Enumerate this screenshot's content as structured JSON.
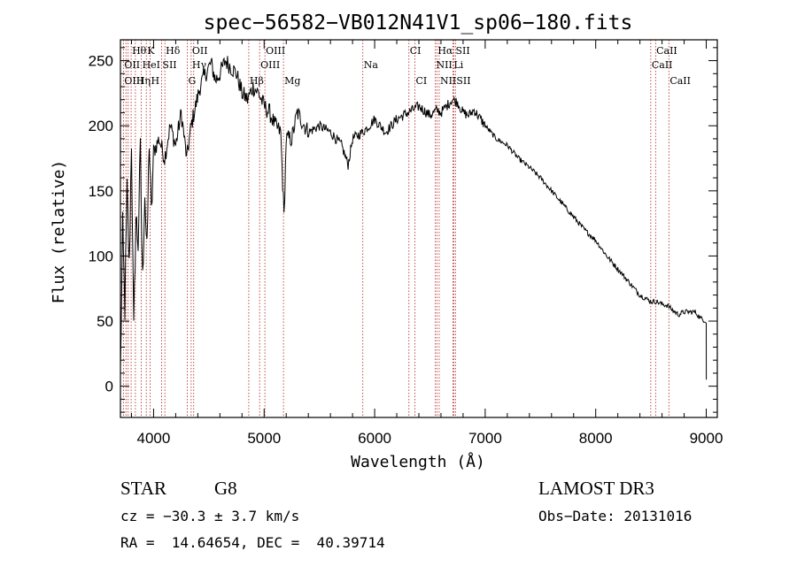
{
  "chart_data": {
    "type": "line",
    "title": "spec−56582−VB012N41V1_sp06−180.fits",
    "xlabel": "Wavelength (Å)",
    "ylabel": "Flux (relative)",
    "xlim": [
      3700,
      9100
    ],
    "ylim": [
      -24,
      266
    ],
    "x_ticks": [
      4000,
      5000,
      6000,
      7000,
      8000,
      9000
    ],
    "y_ticks": [
      0,
      50,
      100,
      150,
      200,
      250
    ],
    "grid": false,
    "series": [
      {
        "name": "spectrum",
        "x": [
          3700,
          3720,
          3740,
          3760,
          3780,
          3800,
          3820,
          3840,
          3860,
          3880,
          3900,
          3920,
          3940,
          3960,
          3980,
          4000,
          4050,
          4100,
          4150,
          4200,
          4250,
          4300,
          4340,
          4380,
          4420,
          4470,
          4520,
          4560,
          4600,
          4650,
          4700,
          4750,
          4800,
          4850,
          4900,
          4950,
          5000,
          5050,
          5100,
          5150,
          5180,
          5200,
          5250,
          5300,
          5400,
          5500,
          5600,
          5700,
          5760,
          5800,
          5890,
          5950,
          6000,
          6100,
          6200,
          6300,
          6400,
          6500,
          6563,
          6600,
          6650,
          6700,
          6750,
          6800,
          6850,
          6900,
          7000,
          7100,
          7200,
          7300,
          7400,
          7500,
          7600,
          7700,
          7800,
          7900,
          8000,
          8100,
          8200,
          8300,
          8400,
          8500,
          8550,
          8600,
          8650,
          8700,
          8750,
          8800,
          8850,
          8900,
          8950,
          9000,
          9001
        ],
        "values": [
          10,
          120,
          60,
          150,
          90,
          190,
          40,
          130,
          110,
          180,
          80,
          150,
          100,
          190,
          130,
          180,
          190,
          175,
          200,
          185,
          210,
          175,
          200,
          215,
          230,
          240,
          248,
          235,
          240,
          250,
          245,
          240,
          225,
          220,
          230,
          225,
          215,
          210,
          200,
          195,
          130,
          190,
          190,
          210,
          195,
          200,
          195,
          185,
          170,
          190,
          195,
          200,
          205,
          195,
          205,
          210,
          215,
          208,
          212,
          210,
          215,
          220,
          218,
          210,
          208,
          212,
          200,
          190,
          185,
          175,
          168,
          160,
          150,
          140,
          130,
          120,
          112,
          100,
          90,
          80,
          70,
          65,
          65,
          63,
          62,
          58,
          55,
          57,
          57,
          57,
          52,
          50,
          5
        ]
      }
    ],
    "line_ids": [
      {
        "label": "Hθ",
        "x": 3797,
        "row": 0
      },
      {
        "label": "K",
        "x": 3934,
        "row": 0
      },
      {
        "label": "Hδ",
        "x": 4102,
        "row": 0
      },
      {
        "label": "OII",
        "x": 4340,
        "row": 0
      },
      {
        "label": "OIII",
        "x": 5007,
        "row": 0
      },
      {
        "label": "CI",
        "x": 6310,
        "row": 0
      },
      {
        "label": "Hα",
        "x": 6563,
        "row": 0
      },
      {
        "label": "SII",
        "x": 6724,
        "row": 0
      },
      {
        "label": "CaII",
        "x": 8540,
        "row": 0
      },
      {
        "label": "OII",
        "x": 3727,
        "row": 1
      },
      {
        "label": "HeI",
        "x": 3889,
        "row": 1
      },
      {
        "label": "SII",
        "x": 4072,
        "row": 1
      },
      {
        "label": "Hγ",
        "x": 4340,
        "row": 1
      },
      {
        "label": "OIII",
        "x": 4959,
        "row": 1
      },
      {
        "label": "Na",
        "x": 5893,
        "row": 1
      },
      {
        "label": "NII",
        "x": 6548,
        "row": 1
      },
      {
        "label": "Li",
        "x": 6708,
        "row": 1
      },
      {
        "label": "CaII",
        "x": 8498,
        "row": 1
      },
      {
        "label": "OIII",
        "x": 3727,
        "row": 2
      },
      {
        "label": "Hη",
        "x": 3835,
        "row": 2
      },
      {
        "label": "H",
        "x": 3968,
        "row": 2
      },
      {
        "label": "G",
        "x": 4305,
        "row": 2
      },
      {
        "label": "Hβ",
        "x": 4861,
        "row": 2
      },
      {
        "label": "Mg",
        "x": 5175,
        "row": 2
      },
      {
        "label": "CI",
        "x": 6364,
        "row": 2
      },
      {
        "label": "NII",
        "x": 6584,
        "row": 2
      },
      {
        "label": "SII",
        "x": 6731,
        "row": 2
      },
      {
        "label": "CaII",
        "x": 8662,
        "row": 2
      }
    ],
    "marker_lines": [
      3727,
      3750,
      3770,
      3797,
      3835,
      3889,
      3934,
      3968,
      4072,
      4102,
      4305,
      4340,
      4363,
      4861,
      4959,
      5007,
      5175,
      5893,
      6310,
      6364,
      6548,
      6563,
      6584,
      6708,
      6717,
      6731,
      8498,
      8542,
      8662
    ]
  },
  "info": {
    "class": "STAR",
    "subclass": "G8",
    "survey": "LAMOST DR3",
    "cz": "cz = −30.3 ± 3.7 km/s",
    "obs_date": "Obs−Date: 20131016",
    "coords": "RA =  14.64654, DEC =  40.39714"
  }
}
